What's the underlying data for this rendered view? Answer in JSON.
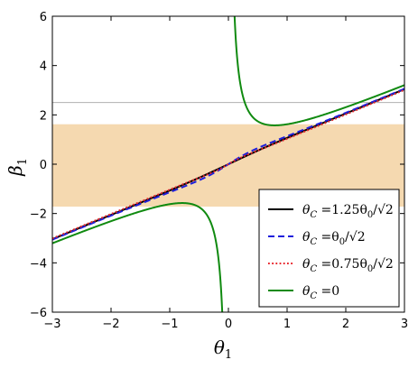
{
  "chart_data": {
    "type": "line",
    "xlabel": "θ",
    "xlabel_sub": "1",
    "ylabel": "β",
    "ylabel_sub": "1",
    "xlim": [
      -3,
      3
    ],
    "ylim": [
      -6,
      6
    ],
    "xticks": [
      -3,
      -2,
      -1,
      0,
      1,
      2,
      3
    ],
    "yticks": [
      -6,
      -4,
      -2,
      0,
      2,
      4,
      6
    ],
    "xtick_labels": [
      "−3",
      "−2",
      "−1",
      "0",
      "1",
      "2",
      "3"
    ],
    "ytick_labels": [
      "−6",
      "−4",
      "−2",
      "0",
      "2",
      "4",
      "6"
    ],
    "band": {
      "y0": -1.72,
      "y1": 1.62,
      "color": "#f5d9b0"
    },
    "hlines": [
      {
        "y": 2.5,
        "color": "#b0b0b0"
      }
    ],
    "diagonal": {
      "from": [
        -3,
        -3
      ],
      "to": [
        3,
        3
      ],
      "color": "#f0b0a0",
      "style": "dotted"
    },
    "grid": false,
    "legend_position": "lower-right",
    "series": [
      {
        "name": "θ_C = 1.25θ_0/√2",
        "lbl_main": "θ",
        "lbl_sub": "C",
        "lbl_rest": " =1.25θ",
        "lbl_sub2": "0",
        "lbl_tail": "/√2",
        "color": "#000000",
        "dash": "solid",
        "k": 1.1
      },
      {
        "name": "θ_C = θ_0/√2",
        "lbl_main": "θ",
        "lbl_sub": "C",
        "lbl_rest": " =θ",
        "lbl_sub2": "0",
        "lbl_tail": "/√2",
        "color": "#1f1fdc",
        "dash": "dashed",
        "k": 0.6
      },
      {
        "name": "θ_C = 0.75θ_0/√2",
        "lbl_main": "θ",
        "lbl_sub": "C",
        "lbl_rest": " =0.75θ",
        "lbl_sub2": "0",
        "lbl_tail": "/√2",
        "color": "#e8262c",
        "dash": "dotted",
        "k": 0.32
      },
      {
        "name": "θ_C = 0",
        "lbl_main": "θ",
        "lbl_sub": "C",
        "lbl_rest": " =0",
        "lbl_sub2": "",
        "lbl_tail": "",
        "color": "#108a10",
        "dash": "solid",
        "k": 0
      }
    ]
  }
}
